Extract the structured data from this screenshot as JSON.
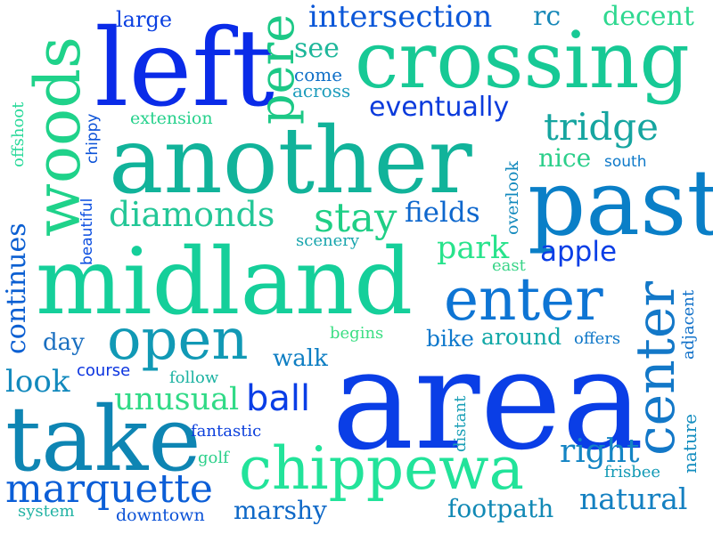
{
  "words": {
    "area": {
      "text": "area",
      "color": "#0a3ee6"
    },
    "midland": {
      "text": "midland",
      "color": "#15cf9a"
    },
    "another": {
      "text": "another",
      "color": "#11b39a"
    },
    "crossing": {
      "text": "crossing",
      "color": "#17c995"
    },
    "left": {
      "text": "left",
      "color": "#0a2be8"
    },
    "past": {
      "text": "past",
      "color": "#0a7fc7"
    },
    "take": {
      "text": "take",
      "color": "#0e85b3"
    },
    "chippewa": {
      "text": "chippewa",
      "color": "#22e39a"
    },
    "woods": {
      "text": "woods",
      "color": "#1fd28a"
    },
    "open": {
      "text": "open",
      "color": "#1199b5"
    },
    "enter": {
      "text": "enter",
      "color": "#0e75d4"
    },
    "center": {
      "text": "center",
      "color": "#1378c8"
    },
    "pere": {
      "text": "pere",
      "color": "#1cc886"
    },
    "marquette": {
      "text": "marquette",
      "color": "#0b5ed7"
    },
    "stay": {
      "text": "stay",
      "color": "#1fcf86"
    },
    "diamonds": {
      "text": "diamonds",
      "color": "#24c797"
    },
    "intersection": {
      "text": "intersection",
      "color": "#0b57d8"
    },
    "tridge": {
      "text": "tridge",
      "color": "#16a5a0"
    },
    "eventually": {
      "text": "eventually",
      "color": "#0b3bdc"
    },
    "continues": {
      "text": "continues",
      "color": "#0b5fd2"
    },
    "unusual": {
      "text": "unusual",
      "color": "#30da86"
    },
    "ball": {
      "text": "ball",
      "color": "#0a3ee6"
    },
    "right": {
      "text": "right",
      "color": "#1384c4"
    },
    "natural": {
      "text": "natural",
      "color": "#1480c1"
    },
    "fields": {
      "text": "fields",
      "color": "#0e67cd"
    },
    "park": {
      "text": "park",
      "color": "#28e38c"
    },
    "apple": {
      "text": "apple",
      "color": "#0a3ee6"
    },
    "look": {
      "text": "look",
      "color": "#1289bd"
    },
    "footpath": {
      "text": "footpath",
      "color": "#1189b5"
    },
    "marshy": {
      "text": "marshy",
      "color": "#0e68c7"
    },
    "decent": {
      "text": "decent",
      "color": "#2ed890"
    },
    "see": {
      "text": "see",
      "color": "#1fb79b"
    },
    "nice": {
      "text": "nice",
      "color": "#2ccf8b"
    },
    "large": {
      "text": "large",
      "color": "#0b40e1"
    },
    "walk": {
      "text": "walk",
      "color": "#0e7ec3"
    },
    "around": {
      "text": "around",
      "color": "#12a8a7"
    },
    "bike": {
      "text": "bike",
      "color": "#0f79cc"
    },
    "day": {
      "text": "day",
      "color": "#1a6fc0"
    },
    "rc": {
      "text": "rc",
      "color": "#1788b8"
    },
    "come": {
      "text": "come",
      "color": "#0f6fc7"
    },
    "across": {
      "text": "across",
      "color": "#1e9dbc"
    },
    "extension": {
      "text": "extension",
      "color": "#26d18c"
    },
    "offshoot": {
      "text": "offshoot",
      "color": "#29d99a"
    },
    "beautiful": {
      "text": "beautiful",
      "color": "#0b4ee0"
    },
    "chippy": {
      "text": "chippy",
      "color": "#0b52d7"
    },
    "south": {
      "text": "south",
      "color": "#0e79c9"
    },
    "overlook": {
      "text": "overlook",
      "color": "#1289bd"
    },
    "scenery": {
      "text": "scenery",
      "color": "#17a5ad"
    },
    "east": {
      "text": "east",
      "color": "#37d487"
    },
    "offers": {
      "text": "offers",
      "color": "#0e77c8"
    },
    "adjacent": {
      "text": "adjacent",
      "color": "#0e6fc8"
    },
    "begins": {
      "text": "begins",
      "color": "#3bde83"
    },
    "course": {
      "text": "course",
      "color": "#0b34e0"
    },
    "follow": {
      "text": "follow",
      "color": "#1cb2a2"
    },
    "distant": {
      "text": "distant",
      "color": "#1a9fb6"
    },
    "nature": {
      "text": "nature",
      "color": "#138dbf"
    },
    "fantastic": {
      "text": "fantastic",
      "color": "#0b3fdc"
    },
    "golf": {
      "text": "golf",
      "color": "#2bd08a"
    },
    "frisbee": {
      "text": "frisbee",
      "color": "#1199b5"
    },
    "system": {
      "text": "system",
      "color": "#22b3a4"
    },
    "downtown": {
      "text": "downtown",
      "color": "#0b52d7"
    }
  }
}
